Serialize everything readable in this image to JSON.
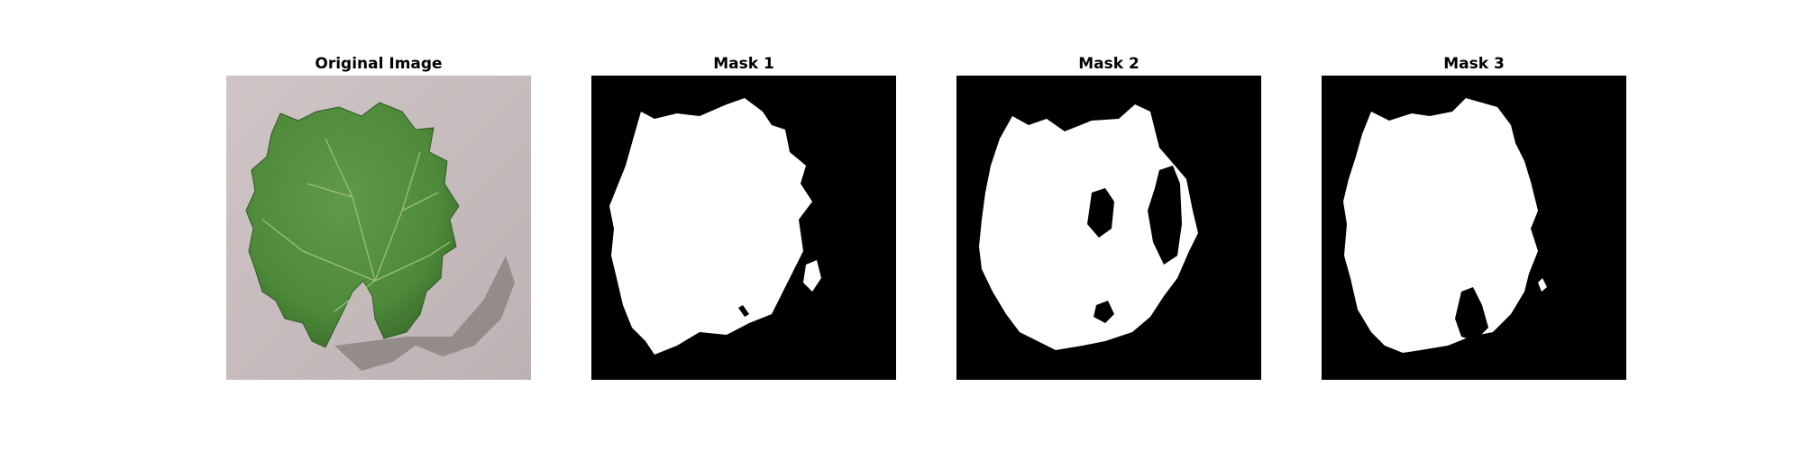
{
  "figure": {
    "panels": [
      {
        "title": "Original Image",
        "content": "grape-leaf-photo"
      },
      {
        "title": "Mask 1",
        "content": "binary-mask"
      },
      {
        "title": "Mask 2",
        "content": "binary-mask"
      },
      {
        "title": "Mask 3",
        "content": "binary-mask"
      }
    ]
  },
  "colors": {
    "background": "#c7bcbd",
    "leaf": "#4e8a3a",
    "leaf_dark": "#3e7330",
    "mask_fg": "#ffffff",
    "mask_bg": "#000000"
  }
}
